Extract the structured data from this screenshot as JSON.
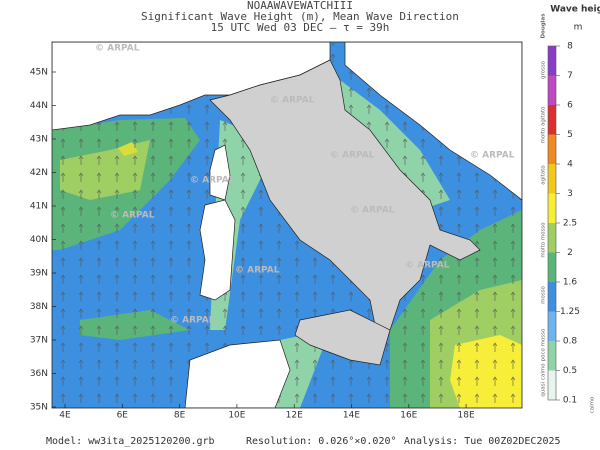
{
  "header": {
    "model_name": "NOAAWAVEWATCHIII",
    "title": "Significant Wave Height (m), Mean Wave Direction",
    "subtitle": "15 UTC Wed 03 DEC  —  τ = 39h"
  },
  "map": {
    "watermark": "© ARPAL",
    "lat_labels": [
      "45N",
      "44N",
      "43N",
      "42N",
      "41N",
      "40N",
      "39N",
      "38N",
      "37N",
      "36N",
      "35N"
    ],
    "lon_labels": [
      "4E",
      "6E",
      "8E",
      "10E",
      "12E",
      "14E",
      "16E",
      "18E"
    ]
  },
  "colorbar": {
    "title": "Wave height",
    "unit": "m",
    "scale_name": "Douglas",
    "levels": [
      "8",
      "7",
      "6",
      "5",
      "4",
      "3",
      "2.5",
      "2",
      "1.6",
      "1.25",
      "0.8",
      "0.5",
      "0.1"
    ],
    "sea_states": [
      "grosso",
      "molto agitato",
      "agitato",
      "molto mosso",
      "mosso",
      "poco mosso",
      "quasi calmo",
      "calmo"
    ]
  },
  "footer": {
    "model": "Model: ww3ita_2025120200.grb",
    "resolution": "Resolution: 0.026°×0.020°",
    "analysis": "Analysis: Tue 00Z02DEC2025"
  }
}
